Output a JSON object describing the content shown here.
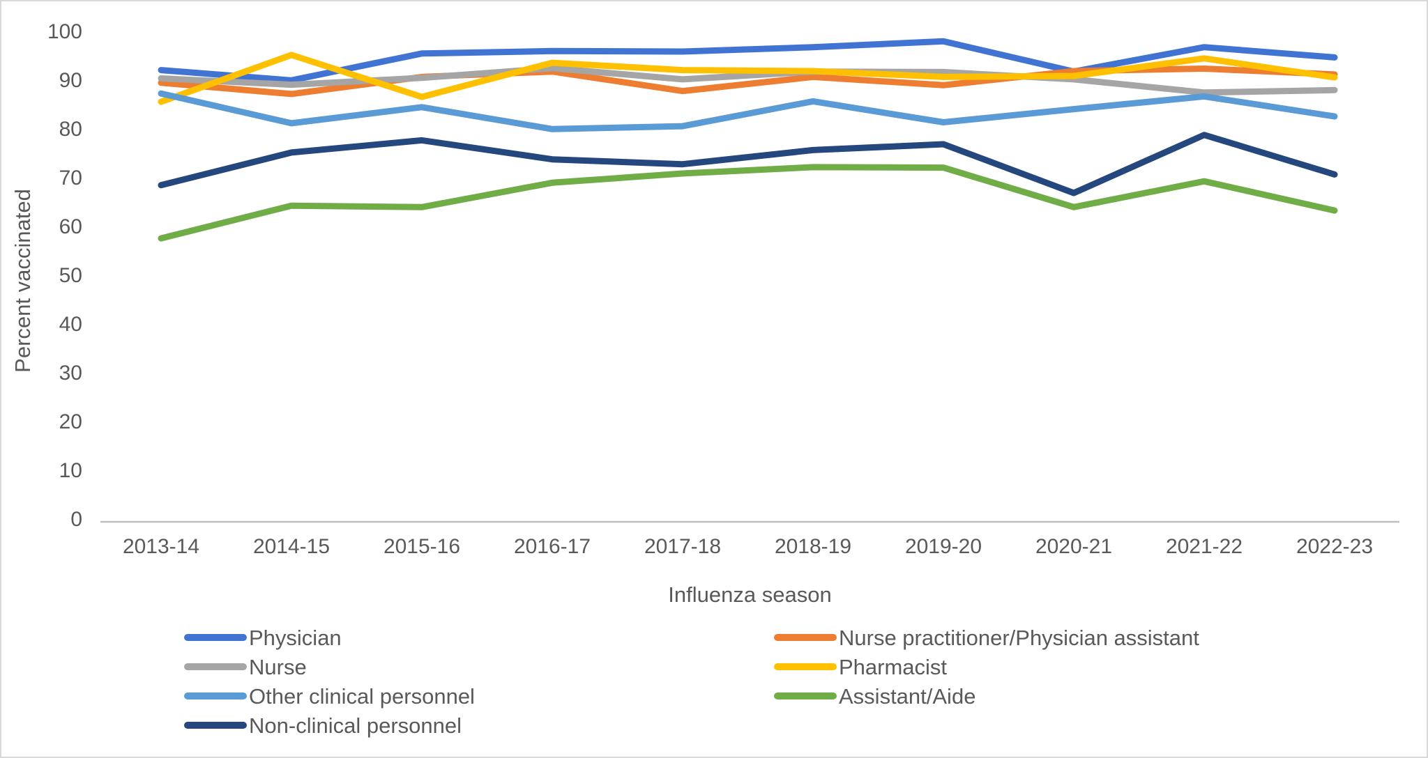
{
  "chart_data": {
    "type": "line",
    "title": "",
    "xlabel": "Influenza season",
    "ylabel": "Percent vaccinated",
    "categories": [
      "2013-14",
      "2014-15",
      "2015-16",
      "2016-17",
      "2017-18",
      "2018-19",
      "2019-20",
      "2020-21",
      "2021-22",
      "2022-23"
    ],
    "y_ticks": [
      0,
      10,
      20,
      30,
      40,
      50,
      60,
      70,
      80,
      90,
      100
    ],
    "ylim": [
      0,
      100
    ],
    "grid": false,
    "legend_position": "bottom, two columns",
    "axis_color": "#BFBFBF",
    "text_color": "#595959",
    "series": [
      {
        "name": "Physician",
        "color": "#4173D2",
        "legend_column": 0,
        "values": [
          92.2,
          90.1,
          95.6,
          96.1,
          96.0,
          96.9,
          98.1,
          91.9,
          96.9,
          94.8
        ]
      },
      {
        "name": "Nurse practitioner/Physician assistant",
        "color": "#ED7D31",
        "legend_column": 1,
        "values": [
          89.6,
          87.3,
          90.8,
          91.9,
          87.9,
          90.8,
          89.1,
          92.0,
          92.5,
          91.3
        ]
      },
      {
        "name": "Nurse",
        "color": "#A5A5A5",
        "legend_column": 0,
        "values": [
          90.5,
          89.2,
          90.6,
          92.6,
          90.3,
          91.9,
          91.8,
          90.3,
          87.6,
          88.1
        ]
      },
      {
        "name": "Pharmacist",
        "color": "#FFC000",
        "legend_column": 1,
        "values": [
          85.7,
          95.3,
          86.7,
          93.7,
          92.2,
          92.0,
          90.8,
          91.0,
          94.6,
          90.7
        ]
      },
      {
        "name": "Other clinical personnel",
        "color": "#5B9BD5",
        "legend_column": 0,
        "values": [
          87.4,
          81.3,
          84.6,
          80.1,
          80.7,
          85.8,
          81.5,
          84.2,
          86.8,
          82.7
        ]
      },
      {
        "name": "Assistant/Aide",
        "color": "#70AD47",
        "legend_column": 1,
        "values": [
          57.7,
          64.4,
          64.1,
          69.1,
          71.0,
          72.3,
          72.2,
          64.1,
          69.4,
          63.4
        ]
      },
      {
        "name": "Non-clinical personnel",
        "color": "#24477E",
        "legend_column": 0,
        "values": [
          68.6,
          75.3,
          77.8,
          73.9,
          72.9,
          75.8,
          77.0,
          67.0,
          78.9,
          70.8
        ]
      }
    ]
  }
}
